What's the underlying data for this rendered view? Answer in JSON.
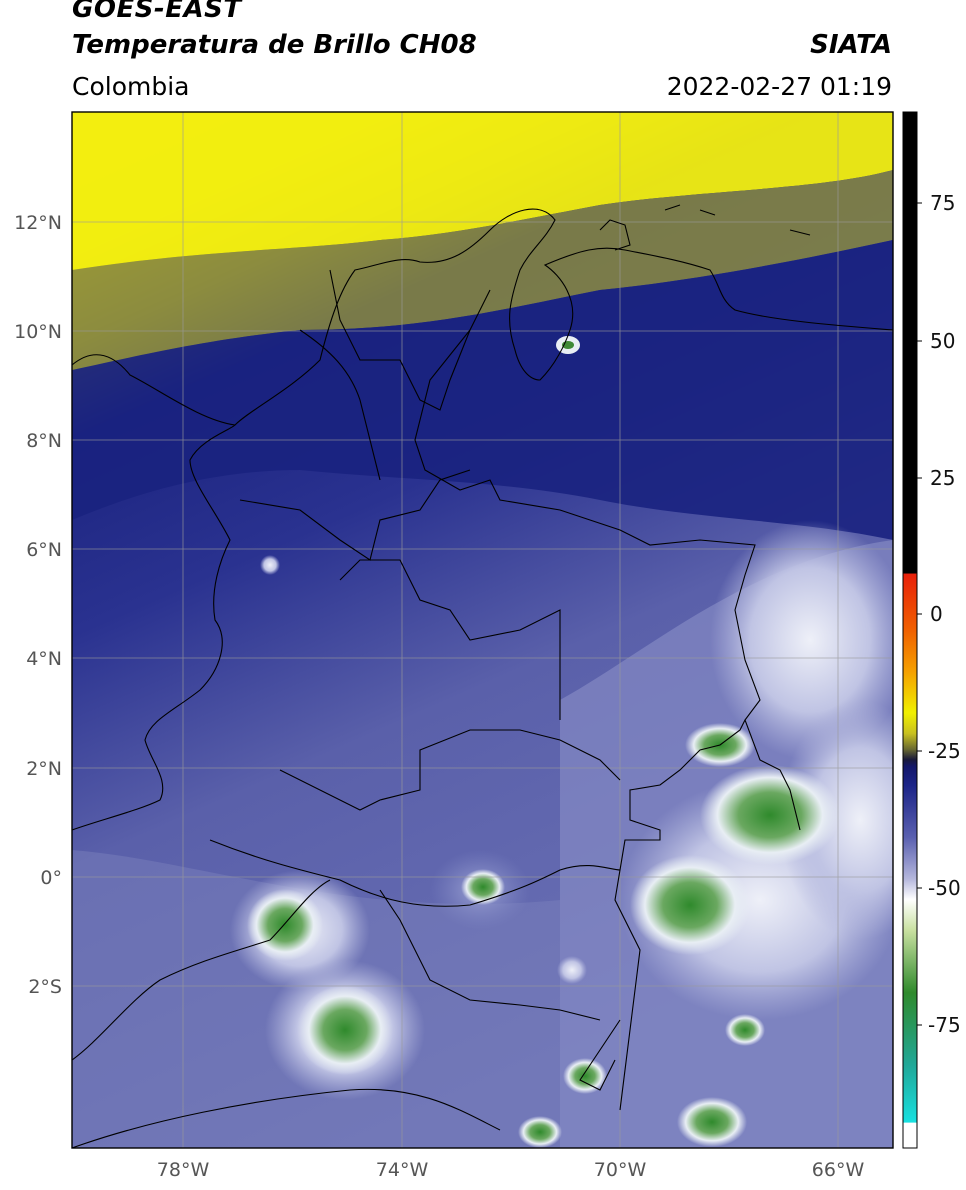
{
  "header": {
    "satellite": "GOES-EAST",
    "product": "Temperatura de Brillo CH08",
    "agency": "SIATA",
    "region": "Colombia",
    "datetime": "2022-02-27 01:19"
  },
  "map": {
    "lat_labels": [
      "12°N",
      "10°N",
      "8°N",
      "6°N",
      "4°N",
      "2°N",
      "0°",
      "2°S"
    ],
    "lon_labels": [
      "78°W",
      "74°W",
      "70°W",
      "66°W"
    ]
  },
  "colorbar": {
    "tick_labels": [
      "75",
      "50",
      "25",
      "0",
      "-25",
      "-50",
      "-75"
    ],
    "colors": {
      "black": "#000000",
      "red": "#e8200a",
      "orange": "#f5a000",
      "yellow": "#f0f000",
      "olive": "#6a6a30",
      "navy": "#141a78",
      "lavender": "#b4b6dc",
      "green": "#2f8a2c",
      "cyan": "#18d8d0"
    }
  },
  "map_colors": {
    "yellow": "#f2ee10",
    "olive": "#8a8a40",
    "navy": "#1c2480",
    "blue": "#3a429a",
    "lavender": "#8890c8",
    "white": "#eef0f8",
    "green": "#3f8a36"
  }
}
